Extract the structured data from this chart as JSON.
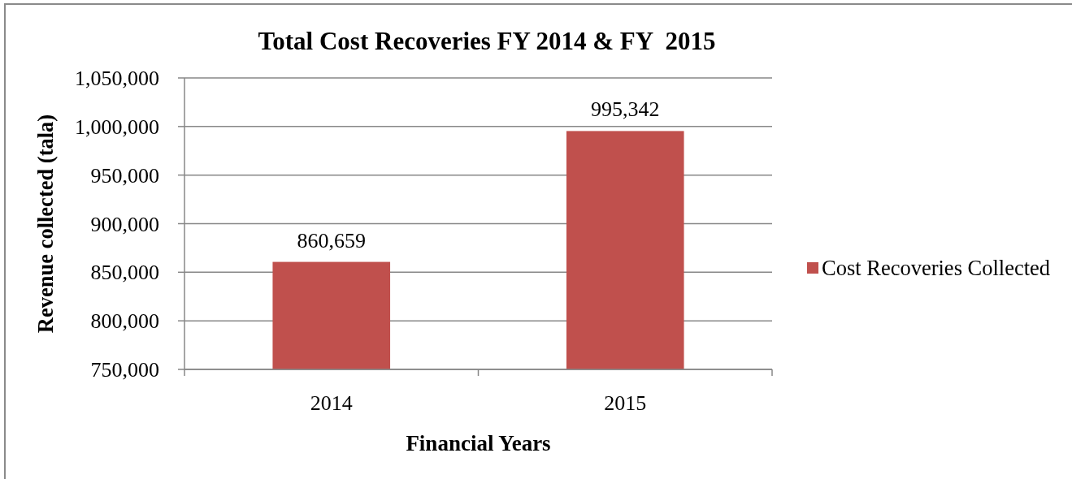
{
  "chart_data": {
    "type": "bar",
    "title": "Total Cost Recoveries FY 2014 & FY  2015",
    "xlabel": "Financial Years",
    "ylabel": "Revenue collected (tala)",
    "categories": [
      "2014",
      "2015"
    ],
    "series": [
      {
        "name": "Cost Recoveries Collected",
        "color": "#c0504d",
        "values": [
          860659,
          995342
        ],
        "value_labels": [
          "860,659",
          "995,342"
        ]
      }
    ],
    "ylim": [
      750000,
      1050000
    ],
    "yticks": [
      {
        "value": 750000,
        "label": "750,000"
      },
      {
        "value": 800000,
        "label": "800,000"
      },
      {
        "value": 850000,
        "label": "850,000"
      },
      {
        "value": 900000,
        "label": "900,000"
      },
      {
        "value": 950000,
        "label": "950,000"
      },
      {
        "value": 1000000,
        "label": "1,000,000"
      },
      {
        "value": 1050000,
        "label": "1,050,000"
      }
    ],
    "grid": "y",
    "legend": "right"
  }
}
